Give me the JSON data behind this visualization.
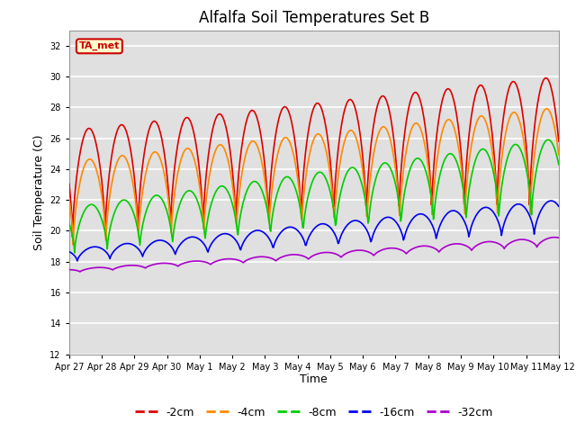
{
  "title": "Alfalfa Soil Temperatures Set B",
  "xlabel": "Time",
  "ylabel": "Soil Temperature (C)",
  "ylim": [
    12,
    33
  ],
  "yticks": [
    12,
    14,
    16,
    18,
    20,
    22,
    24,
    26,
    28,
    30,
    32
  ],
  "bg_color": "#e0e0e0",
  "fig_color": "#ffffff",
  "grid_color": "#ffffff",
  "annotation_text": "TA_met",
  "annotation_bg": "#ffffcc",
  "annotation_border": "#cc0000",
  "annotation_text_color": "#cc0000",
  "series": {
    "-2cm": {
      "color": "#dd0000",
      "linewidth": 1.2
    },
    "-4cm": {
      "color": "#ff8800",
      "linewidth": 1.2
    },
    "-8cm": {
      "color": "#00cc00",
      "linewidth": 1.2
    },
    "-16cm": {
      "color": "#0000ee",
      "linewidth": 1.2
    },
    "-32cm": {
      "color": "#aa00cc",
      "linewidth": 1.2
    }
  },
  "legend_colors": {
    "-2cm": "#dd0000",
    "-4cm": "#ff8800",
    "-8cm": "#00cc00",
    "-16cm": "#0000ee",
    "-32cm": "#aa00cc"
  },
  "xtick_labels": [
    "Apr 27",
    "Apr 28",
    "Apr 29",
    "Apr 30",
    "May 1",
    "May 2",
    "May 3",
    "May 4",
    "May 5",
    "May 6",
    "May 7",
    "May 8",
    "May 9",
    "May 10",
    "May 11",
    "May 12"
  ],
  "num_days": 15
}
